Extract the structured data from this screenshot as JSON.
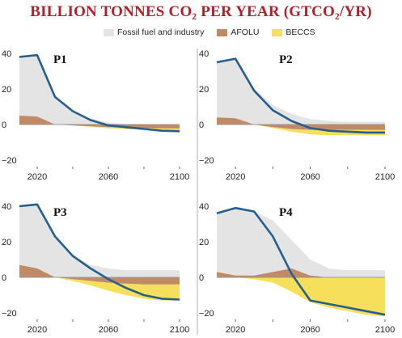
{
  "title": "BILLION TONNES CO₂ PER YEAR (GTCO₂/YR)",
  "legend": [
    {
      "name": "Fossil fuel and industry",
      "color": "#e4e4e4"
    },
    {
      "name": "AFOLU",
      "color": "#c08a64"
    },
    {
      "name": "BECCS",
      "color": "#f6df5a"
    }
  ],
  "colors": {
    "net_line": "#265f8c",
    "zero_line": "#999999",
    "panel_divider": "#b0b0b0"
  },
  "chart_data": [
    {
      "type": "area",
      "title": "P1",
      "xlim": [
        2010,
        2100
      ],
      "ylim": [
        -20,
        40
      ],
      "x_ticks": [
        "2020",
        "2060",
        "2100"
      ],
      "y_ticks": [
        "40",
        "20",
        "0",
        "−20"
      ],
      "x": [
        2010,
        2020,
        2030,
        2040,
        2050,
        2060,
        2070,
        2080,
        2090,
        2100
      ],
      "series": [
        {
          "name": "Fossil fuel and industry",
          "values": [
            37,
            38,
            15,
            7.5,
            3.5,
            1,
            0.2,
            -0.3,
            -0.6,
            -0.8
          ]
        },
        {
          "name": "AFOLU",
          "values": [
            5,
            4.5,
            0,
            -0.5,
            -1,
            -1.5,
            -1.8,
            -2,
            -2.1,
            -2.2
          ]
        },
        {
          "name": "BECCS",
          "values": [
            0,
            0,
            0,
            0,
            -0.3,
            -0.6,
            -0.8,
            -0.9,
            -1,
            -1
          ]
        },
        {
          "name": "Net",
          "values": [
            38,
            39,
            15.5,
            7.5,
            2.5,
            -0.5,
            -1.5,
            -2.5,
            -3.5,
            -3.8
          ]
        }
      ]
    },
    {
      "type": "area",
      "title": "P2",
      "xlim": [
        2010,
        2100
      ],
      "ylim": [
        -20,
        40
      ],
      "x_ticks": [
        "2020",
        "2060",
        "2100"
      ],
      "y_ticks": [
        "40",
        "20",
        "0",
        "−20"
      ],
      "x": [
        2010,
        2020,
        2030,
        2040,
        2050,
        2060,
        2070,
        2080,
        2090,
        2100
      ],
      "series": [
        {
          "name": "Fossil fuel and industry",
          "values": [
            35,
            37,
            20,
            11,
            6,
            3,
            2,
            1.5,
            1.5,
            1.5
          ]
        },
        {
          "name": "AFOLU",
          "values": [
            4,
            3.5,
            0,
            -1.5,
            -2.5,
            -3,
            -3,
            -3,
            -3,
            -3
          ]
        },
        {
          "name": "BECCS",
          "values": [
            0,
            0,
            0,
            -0.5,
            -1.5,
            -2.5,
            -3,
            -3,
            -3,
            -3
          ]
        },
        {
          "name": "Net",
          "values": [
            35,
            37,
            19,
            8,
            2,
            -2,
            -3.5,
            -4,
            -4.5,
            -4.5
          ]
        }
      ]
    },
    {
      "type": "area",
      "title": "P3",
      "xlim": [
        2010,
        2100
      ],
      "ylim": [
        -20,
        40
      ],
      "x_ticks": [
        "2020",
        "2060",
        "2100"
      ],
      "y_ticks": [
        "40",
        "20",
        "0",
        "−20"
      ],
      "x": [
        2010,
        2020,
        2030,
        2040,
        2050,
        2060,
        2070,
        2080,
        2090,
        2100
      ],
      "series": [
        {
          "name": "Fossil fuel and industry",
          "values": [
            40,
            41,
            22,
            12,
            7,
            5,
            4,
            4,
            4,
            4
          ]
        },
        {
          "name": "AFOLU",
          "values": [
            7,
            5,
            0,
            -1,
            -2,
            -3,
            -3.5,
            -4,
            -4,
            -4
          ]
        },
        {
          "name": "BECCS",
          "values": [
            0,
            0,
            0,
            -1,
            -2.5,
            -4.5,
            -6.5,
            -8,
            -9,
            -9
          ]
        },
        {
          "name": "Net",
          "values": [
            40,
            41,
            23,
            12,
            5,
            -1,
            -6,
            -10,
            -12,
            -12.5
          ]
        }
      ]
    },
    {
      "type": "area",
      "title": "P4",
      "xlim": [
        2010,
        2100
      ],
      "ylim": [
        -20,
        40
      ],
      "x_ticks": [
        "2020",
        "2060",
        "2100"
      ],
      "y_ticks": [
        "40",
        "20",
        "0",
        "−20"
      ],
      "x": [
        2010,
        2020,
        2030,
        2040,
        2050,
        2060,
        2070,
        2080,
        2090,
        2100
      ],
      "series": [
        {
          "name": "Fossil fuel and industry",
          "values": [
            36,
            39,
            37,
            32,
            21,
            10,
            5,
            4,
            4,
            4
          ]
        },
        {
          "name": "AFOLU",
          "values": [
            3,
            1,
            1,
            3,
            5,
            1,
            0,
            0,
            0,
            0
          ]
        },
        {
          "name": "BECCS",
          "values": [
            0,
            0,
            -1,
            -3,
            -8,
            -14,
            -17,
            -19,
            -21,
            -22
          ]
        },
        {
          "name": "Net",
          "values": [
            36,
            39,
            37,
            23,
            2,
            -13,
            -15,
            -17,
            -19,
            -21
          ]
        }
      ]
    }
  ]
}
